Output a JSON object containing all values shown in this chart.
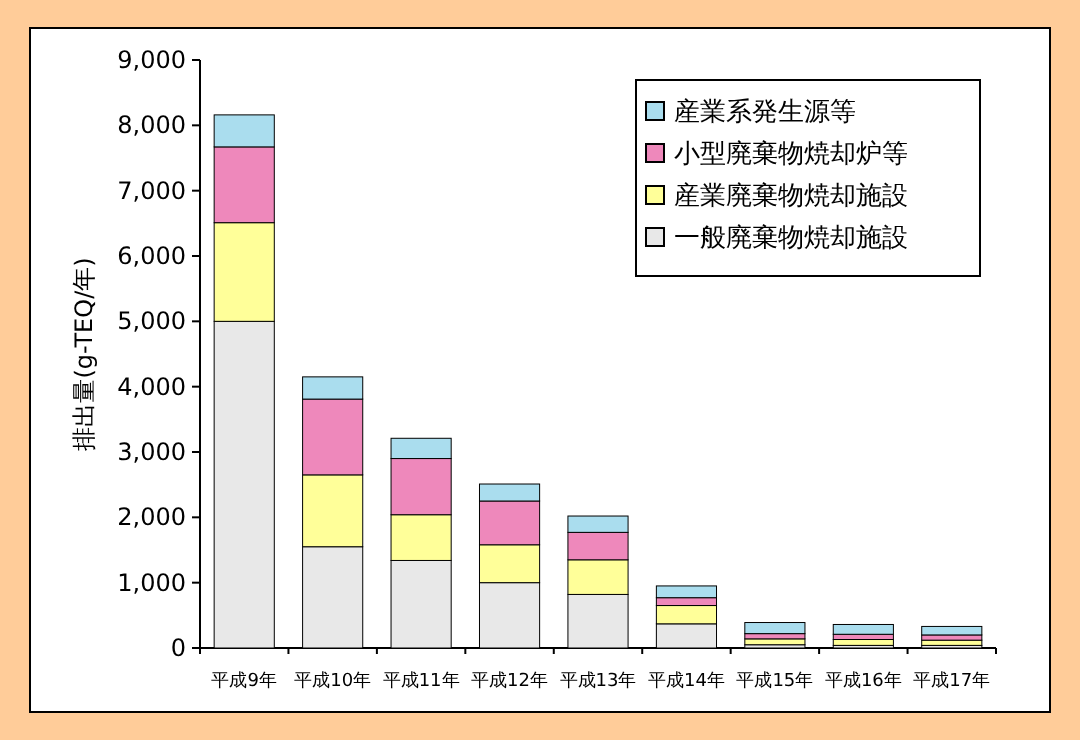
{
  "chart_data": {
    "type": "bar",
    "stacked": true,
    "ylabel": "排出量(g-TEQ/年)",
    "categories": [
      "平成9年",
      "平成10年",
      "平成11年",
      "平成12年",
      "平成13年",
      "平成14年",
      "平成15年",
      "平成16年",
      "平成17年"
    ],
    "series": [
      {
        "name": "一般廃棄物焼却施設",
        "color": "#e8e8e8",
        "values": [
          5000,
          1550,
          1340,
          1000,
          820,
          370,
          50,
          40,
          40
        ]
      },
      {
        "name": "産業廃棄物焼却施設",
        "color": "#ffff99",
        "values": [
          1510,
          1100,
          700,
          580,
          530,
          280,
          90,
          90,
          80
        ]
      },
      {
        "name": "小型廃棄物焼却炉等",
        "color": "#ee88bb",
        "values": [
          1160,
          1160,
          860,
          670,
          420,
          120,
          80,
          80,
          80
        ]
      },
      {
        "name": "産業系発生源等",
        "color": "#aaddee",
        "values": [
          490,
          340,
          310,
          260,
          250,
          180,
          170,
          150,
          130
        ]
      }
    ],
    "ylim": [
      0,
      9000
    ],
    "yticks": [
      0,
      {
        "value": 1000,
        "label": "1,000"
      },
      {
        "value": 2000,
        "label": "2,000"
      },
      {
        "value": 3000,
        "label": "3,000"
      },
      {
        "value": 4000,
        "label": "4,000"
      },
      {
        "value": 5000,
        "label": "5,000"
      },
      {
        "value": 6000,
        "label": "6,000"
      },
      {
        "value": 7000,
        "label": "7,000"
      },
      {
        "value": 8000,
        "label": "8,000"
      },
      {
        "value": 9000,
        "label": "9,000"
      }
    ],
    "legend": "top right"
  }
}
